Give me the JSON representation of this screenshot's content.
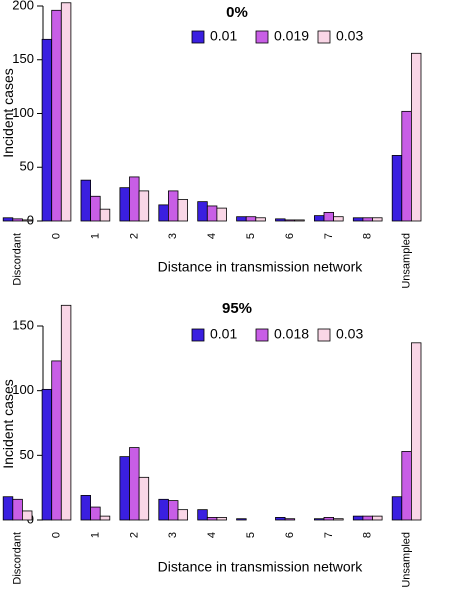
{
  "colors": {
    "series": [
      "#3a1fe0",
      "#c85ee6",
      "#f9d6e6"
    ],
    "stroke": "#000000"
  },
  "chart_data": [
    {
      "type": "bar",
      "title": "0%",
      "xlabel": "Distance in transmission network",
      "ylabel": "Incident cases",
      "categories": [
        "Discordant",
        "0",
        "1",
        "2",
        "3",
        "4",
        "5",
        "6",
        "7",
        "8",
        "Unsampled"
      ],
      "ylim": [
        0,
        200
      ],
      "yticks": [
        "0",
        "50",
        "100",
        "150",
        "200"
      ],
      "legend_position": "top",
      "series": [
        {
          "name": "0.01",
          "values": [
            3,
            169,
            38,
            31,
            15,
            18,
            4,
            2,
            5,
            3,
            61
          ]
        },
        {
          "name": "0.019",
          "values": [
            2,
            196,
            23,
            41,
            28,
            14,
            4,
            1,
            8,
            3,
            102
          ]
        },
        {
          "name": "0.03",
          "values": [
            1,
            203,
            11,
            28,
            20,
            12,
            3,
            1,
            4,
            3,
            156
          ]
        }
      ]
    },
    {
      "type": "bar",
      "title": "95%",
      "xlabel": "Distance in transmission network",
      "ylabel": "Incident cases",
      "categories": [
        "Discordant",
        "0",
        "1",
        "2",
        "3",
        "4",
        "5",
        "6",
        "7",
        "8",
        "Unsampled"
      ],
      "ylim": [
        0,
        150
      ],
      "yticks": [
        "0",
        "50",
        "100",
        "150"
      ],
      "legend_position": "top",
      "series": [
        {
          "name": "0.01",
          "values": [
            18,
            101,
            19,
            49,
            16,
            8,
            1,
            2,
            1,
            3,
            18
          ]
        },
        {
          "name": "0.018",
          "values": [
            16,
            123,
            10,
            56,
            15,
            2,
            0,
            1,
            2,
            3,
            53
          ]
        },
        {
          "name": "0.03",
          "values": [
            7,
            166,
            3,
            33,
            8,
            2,
            0,
            0,
            1,
            3,
            137
          ]
        }
      ]
    }
  ]
}
